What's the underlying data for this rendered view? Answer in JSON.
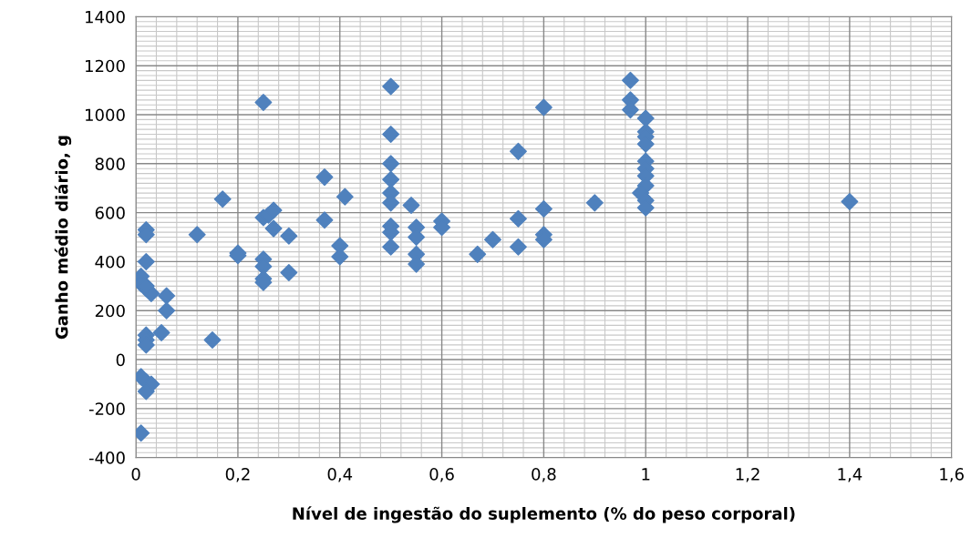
{
  "chart_data": {
    "type": "scatter",
    "xlabel": "Nível de ingestão do suplemento (% do peso corporal)",
    "ylabel": "Ganho médio diário, g",
    "xlim": [
      0,
      1.6
    ],
    "xticks": [
      {
        "value": 0,
        "label": "0"
      },
      {
        "value": 0.2,
        "label": "0,2"
      },
      {
        "value": 0.4,
        "label": "0,4"
      },
      {
        "value": 0.6,
        "label": "0,6"
      },
      {
        "value": 0.8,
        "label": "0,8"
      },
      {
        "value": 1,
        "label": "1"
      },
      {
        "value": 1.2,
        "label": "1,2"
      },
      {
        "value": 1.4,
        "label": "1,4"
      },
      {
        "value": 1.6,
        "label": "1,6"
      }
    ],
    "ylim": [
      -400,
      1400
    ],
    "yticks": [
      -400,
      -200,
      0,
      200,
      400,
      600,
      800,
      1000,
      1200,
      1400
    ],
    "grid": true,
    "marker": "diamond",
    "series": [
      {
        "color": "#4f81bd",
        "x": [
          0.02,
          0.02,
          0.02,
          0.01,
          0.01,
          0.02,
          0.03,
          0.02,
          0.02,
          0.02,
          0.02,
          0.01,
          0.02,
          0.03,
          0.02,
          0.01,
          0.06,
          0.06,
          0.05,
          0.15,
          0.12,
          0.17,
          0.2,
          0.2,
          0.25,
          0.25,
          0.26,
          0.25,
          0.25,
          0.25,
          0.25,
          0.27,
          0.27,
          0.3,
          0.3,
          0.37,
          0.37,
          0.4,
          0.4,
          0.41,
          0.5,
          0.5,
          0.5,
          0.5,
          0.5,
          0.5,
          0.5,
          0.5,
          0.5,
          0.54,
          0.55,
          0.55,
          0.55,
          0.55,
          0.6,
          0.6,
          0.67,
          0.7,
          0.75,
          0.75,
          0.75,
          0.8,
          0.8,
          0.8,
          0.8,
          0.9,
          0.97,
          0.97,
          0.97,
          1.0,
          1.0,
          1.0,
          1.0,
          1.0,
          1.0,
          1.0,
          1.0,
          0.99,
          1.0,
          1.0,
          1.4
        ],
        "values": [
          530,
          510,
          400,
          340,
          310,
          290,
          270,
          300,
          100,
          80,
          60,
          -70,
          -90,
          -100,
          -130,
          -300,
          260,
          200,
          110,
          80,
          510,
          655,
          435,
          425,
          1050,
          580,
          590,
          410,
          380,
          330,
          315,
          610,
          535,
          505,
          355,
          745,
          570,
          465,
          420,
          665,
          1115,
          920,
          800,
          735,
          680,
          640,
          545,
          520,
          460,
          630,
          540,
          500,
          430,
          390,
          565,
          540,
          430,
          490,
          850,
          575,
          460,
          1030,
          615,
          510,
          490,
          640,
          1140,
          1060,
          1020,
          985,
          930,
          910,
          880,
          810,
          780,
          750,
          710,
          680,
          650,
          620,
          645
        ]
      }
    ]
  }
}
